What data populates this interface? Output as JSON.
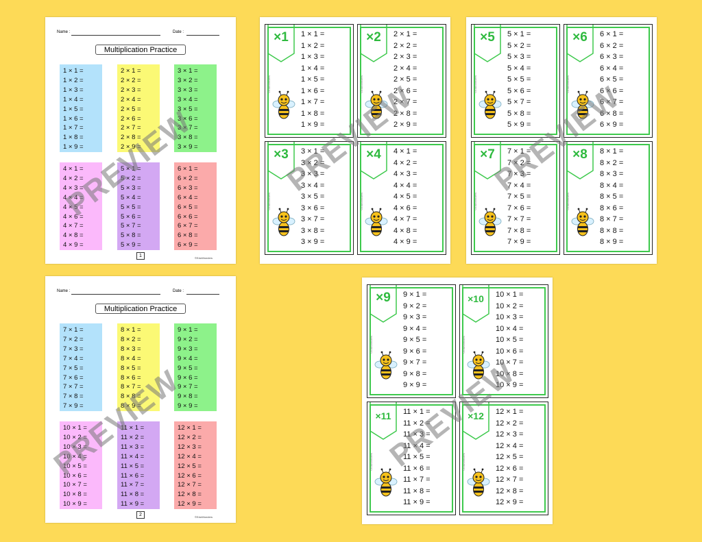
{
  "worksheet_labels": {
    "name": "Name :",
    "date": "Date :",
    "title": "Multiplication Practice",
    "credit": "©EduWonders"
  },
  "worksheets": [
    {
      "page": "1",
      "blocks": [
        {
          "color": "#b3e2fb",
          "facts": [
            "1 × 1 =",
            "1 × 2 =",
            "1 × 3 =",
            "1 × 4 =",
            "1 × 5 =",
            "1 × 6 =",
            "1 × 7 =",
            "1 × 8 =",
            "1 × 9 ="
          ]
        },
        {
          "color": "#fbf975",
          "facts": [
            "2 × 1 =",
            "2 × 2 =",
            "2 × 3 =",
            "2 × 4 =",
            "2 × 5 =",
            "2 × 6 =",
            "2 × 7 =",
            "2 × 8 =",
            "2 × 9 ="
          ]
        },
        {
          "color": "#8df28a",
          "facts": [
            "3 × 1 =",
            "3 × 2 =",
            "3 × 3 =",
            "3 × 4 =",
            "3 × 5 =",
            "3 × 6 =",
            "3 × 7 =",
            "3 × 8 =",
            "3 × 9 ="
          ]
        },
        {
          "color": "#fbb9fb",
          "facts": [
            "4 × 1 =",
            "4 × 2 =",
            "4 × 3 =",
            "4 × 4 =",
            "4 × 5 =",
            "4 × 6 =",
            "4 × 7 =",
            "4 × 8 =",
            "4 × 9 ="
          ]
        },
        {
          "color": "#d3a8f3",
          "facts": [
            "5 × 1 =",
            "5 × 2 =",
            "5 × 3 =",
            "5 × 4 =",
            "5 × 5 =",
            "5 × 6 =",
            "5 × 7 =",
            "5 × 8 =",
            "5 × 9 ="
          ]
        },
        {
          "color": "#fbaaaa",
          "facts": [
            "6 × 1 =",
            "6 × 2 =",
            "6 × 3 =",
            "6 × 4 =",
            "6 × 5 =",
            "6 × 6 =",
            "6 × 7 =",
            "6 × 8 =",
            "6 × 9 ="
          ]
        }
      ]
    },
    {
      "page": "2",
      "blocks": [
        {
          "color": "#b3e2fb",
          "facts": [
            "7 × 1 =",
            "7 × 2 =",
            "7 × 3 =",
            "7 × 4 =",
            "7 × 5 =",
            "7 × 6 =",
            "7 × 7 =",
            "7 × 8 =",
            "7 × 9 ="
          ]
        },
        {
          "color": "#fbf975",
          "facts": [
            "8 × 1 =",
            "8 × 2 =",
            "8 × 3 =",
            "8 × 4 =",
            "8 × 5 =",
            "8 × 6 =",
            "8 × 7 =",
            "8 × 8 =",
            "8 × 9 ="
          ]
        },
        {
          "color": "#8df28a",
          "facts": [
            "9 × 1 =",
            "9 × 2 =",
            "9 × 3 =",
            "9 × 4 =",
            "9 × 5 =",
            "9 × 6 =",
            "9 × 7 =",
            "9 × 8 =",
            "9 × 9 ="
          ]
        },
        {
          "color": "#fbb9fb",
          "facts": [
            "10 × 1 =",
            "10 × 2 =",
            "10 × 3 =",
            "10 × 4 =",
            "10 × 5 =",
            "10 × 6 =",
            "10 × 7 =",
            "10 × 8 =",
            "10 × 9 ="
          ]
        },
        {
          "color": "#d3a8f3",
          "facts": [
            "11 × 1 =",
            "11 × 2 =",
            "11 × 3 =",
            "11 × 4 =",
            "11 × 5 =",
            "11 × 6 =",
            "11 × 7 =",
            "11 × 8 =",
            "11 × 9 ="
          ]
        },
        {
          "color": "#fbaaaa",
          "facts": [
            "12 × 1 =",
            "12 × 2 =",
            "12 × 3 =",
            "12 × 4 =",
            "12 × 5 =",
            "12 × 6 =",
            "12 × 7 =",
            "12 × 8 =",
            "12 × 9 ="
          ]
        }
      ]
    }
  ],
  "card_credit": "©EduWonders",
  "card_sheets": [
    {
      "cards": [
        {
          "badge": "×1",
          "facts": [
            "1 × 1 =",
            "1 × 2 =",
            "1 × 3 =",
            "1 × 4 =",
            "1 × 5 =",
            "1 × 6 =",
            "1 × 7 =",
            "1 × 8 =",
            "1 × 9 ="
          ]
        },
        {
          "badge": "×2",
          "facts": [
            "2 × 1 =",
            "2 × 2 =",
            "2 × 3 =",
            "2 × 4 =",
            "2 × 5 =",
            "2 × 6 =",
            "2 × 7 =",
            "2 × 8 =",
            "2 × 9 ="
          ]
        },
        {
          "badge": "×3",
          "facts": [
            "3 × 1 =",
            "3 × 2 =",
            "3 × 3 =",
            "3 × 4 =",
            "3 × 5 =",
            "3 × 6 =",
            "3 × 7 =",
            "3 × 8 =",
            "3 × 9 ="
          ]
        },
        {
          "badge": "×4",
          "facts": [
            "4 × 1 =",
            "4 × 2 =",
            "4 × 3 =",
            "4 × 4 =",
            "4 × 5 =",
            "4 × 6 =",
            "4 × 7 =",
            "4 × 8 =",
            "4 × 9 ="
          ]
        }
      ]
    },
    {
      "cards": [
        {
          "badge": "×5",
          "facts": [
            "5 × 1 =",
            "5 × 2 =",
            "5 × 3 =",
            "5 × 4 =",
            "5 × 5 =",
            "5 × 6 =",
            "5 × 7 =",
            "5 × 8 =",
            "5 × 9 ="
          ]
        },
        {
          "badge": "×6",
          "facts": [
            "6 × 1 =",
            "6 × 2 =",
            "6 × 3 =",
            "6 × 4 =",
            "6 × 5 =",
            "6 × 6 =",
            "6 × 7 =",
            "6 × 8 =",
            "6 × 9 ="
          ]
        },
        {
          "badge": "×7",
          "facts": [
            "7 × 1 =",
            "7 × 2 =",
            "7 × 3 =",
            "7 × 4 =",
            "7 × 5 =",
            "7 × 6 =",
            "7 × 7 =",
            "7 × 8 =",
            "7 × 9 ="
          ]
        },
        {
          "badge": "×8",
          "facts": [
            "8 × 1 =",
            "8 × 2 =",
            "8 × 3 =",
            "8 × 4 =",
            "8 × 5 =",
            "8 × 6 =",
            "8 × 7 =",
            "8 × 8 =",
            "8 × 9 ="
          ]
        }
      ]
    },
    {
      "cards": [
        {
          "badge": "×9",
          "facts": [
            "9 × 1 =",
            "9 × 2 =",
            "9 × 3 =",
            "9 × 4 =",
            "9 × 5 =",
            "9 × 6 =",
            "9 × 7 =",
            "9 × 8 =",
            "9 × 9 ="
          ]
        },
        {
          "badge": "×10",
          "facts": [
            "10 × 1 =",
            "10 × 2 =",
            "10 × 3 =",
            "10 × 4 =",
            "10 × 5 =",
            "10 × 6 =",
            "10 × 7 =",
            "10 × 8 =",
            "10 × 9 ="
          ]
        },
        {
          "badge": "×11",
          "facts": [
            "11 × 1 =",
            "11 × 2 =",
            "11 × 3 =",
            "11 × 4 =",
            "11 × 5 =",
            "11 × 6 =",
            "11 × 7 =",
            "11 × 8 =",
            "11 × 9 ="
          ]
        },
        {
          "badge": "×12",
          "facts": [
            "12 × 1 =",
            "12 × 2 =",
            "12 × 3 =",
            "12 × 4 =",
            "12 × 5 =",
            "12 × 6 =",
            "12 × 7 =",
            "12 × 8 =",
            "12 × 9 ="
          ]
        }
      ]
    }
  ],
  "watermark": "PREVIEW",
  "colors": {
    "background": "#fdda57",
    "card_accent": "#3dc94c",
    "badge_text": "#2fba3f"
  }
}
